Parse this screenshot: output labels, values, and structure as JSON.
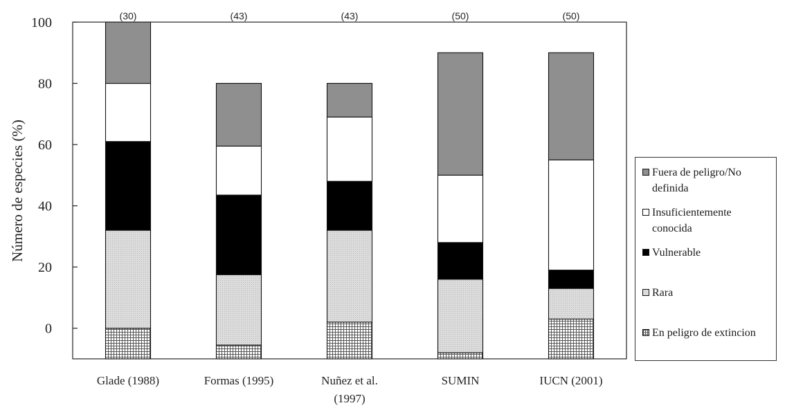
{
  "chart_data": {
    "type": "bar",
    "stacked": true,
    "ylabel": "Número de especies (%)",
    "ylim": [
      -10,
      100
    ],
    "yticks": [
      0,
      20,
      40,
      60,
      80,
      100
    ],
    "categories": [
      "Glade (1988)",
      "Formas (1995)",
      "Nuñez et al. (1997)",
      "SUMIN",
      "IUCN (2001)"
    ],
    "counts": [
      "(30)",
      "(43)",
      "(43)",
      "(50)",
      "(50)"
    ],
    "series": [
      {
        "name": "En peligro de extincion",
        "pattern": "grid",
        "color": "#777777",
        "values": [
          10,
          4.5,
          12,
          2,
          13
        ]
      },
      {
        "name": "Rara",
        "pattern": "dots",
        "color": "#d6d6d6",
        "values": [
          32,
          23,
          30,
          24,
          10
        ]
      },
      {
        "name": "Vulnerable",
        "pattern": "solid",
        "color": "#000000",
        "values": [
          29,
          26,
          16,
          12,
          6
        ]
      },
      {
        "name": "Insuficientemente conocida",
        "pattern": "solid",
        "color": "#ffffff",
        "values": [
          19,
          16,
          21,
          22,
          36
        ]
      },
      {
        "name": "Fuera de peligro/No definida",
        "pattern": "solid",
        "color": "#8f8f8f",
        "values": [
          20,
          20.5,
          11,
          40,
          35
        ]
      }
    ],
    "legend_position": "right",
    "grid": false
  }
}
